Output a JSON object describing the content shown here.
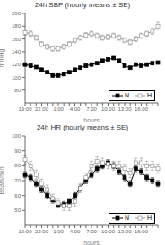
{
  "chart_data": [
    {
      "type": "line",
      "title": "24h SBP (hourly means ± SE)",
      "xlabel": "hours",
      "ylabel": "mmHg",
      "categories": [
        "19:00",
        null,
        null,
        "22:00",
        null,
        null,
        "1:00",
        null,
        null,
        "4:00",
        null,
        null,
        "7:00",
        null,
        null,
        "10:00",
        null,
        null,
        "13:00",
        null,
        null,
        "16:00",
        null,
        null,
        null
      ],
      "series": [
        {
          "name": "N",
          "color": "#000000",
          "marker": "square",
          "values": [
            120,
            118,
            116,
            112,
            108,
            103,
            103,
            105,
            108,
            112,
            115,
            118,
            120,
            122,
            126,
            128,
            130,
            126,
            118,
            115,
            120,
            118,
            120,
            122,
            123
          ],
          "error": [
            2,
            2,
            2,
            2,
            2,
            2,
            2,
            2,
            2,
            2,
            2,
            2,
            2,
            2,
            2,
            2,
            2,
            2,
            2,
            2,
            2,
            2,
            2,
            2,
            2
          ]
        },
        {
          "name": "H",
          "color": "#999999",
          "marker": "open_square",
          "values": [
            170,
            168,
            162,
            152,
            148,
            145,
            145,
            148,
            152,
            158,
            162,
            166,
            168,
            165,
            162,
            163,
            165,
            162,
            158,
            155,
            160,
            165,
            168,
            172,
            180
          ],
          "error": [
            4,
            4,
            4,
            4,
            4,
            4,
            4,
            4,
            4,
            4,
            4,
            4,
            4,
            4,
            4,
            4,
            4,
            4,
            4,
            4,
            4,
            4,
            4,
            5,
            6
          ]
        }
      ],
      "ylim": [
        60,
        200
      ],
      "yticks": [
        80,
        100,
        120,
        140,
        160,
        180,
        200
      ],
      "legend": "lower right",
      "grid": false
    },
    {
      "type": "line",
      "title": "24h HR (hourly means ± SE)",
      "xlabel": "hours",
      "ylabel": "Beats/min",
      "categories": [
        "19:00",
        null,
        null,
        "22:00",
        null,
        null,
        "1:00",
        null,
        null,
        "4:00",
        null,
        null,
        "7:00",
        null,
        null,
        "10:00",
        null,
        null,
        "13:00",
        null,
        null,
        "16:00",
        null,
        null,
        null
      ],
      "series": [
        {
          "name": "N",
          "color": "#000000",
          "marker": "square",
          "values": [
            74,
            72,
            68,
            64,
            60,
            57,
            54,
            54,
            56,
            60,
            65,
            70,
            74,
            78,
            80,
            82,
            80,
            76,
            72,
            68,
            78,
            76,
            72,
            70,
            68
          ],
          "error": [
            2,
            2,
            2,
            2,
            2,
            2,
            2,
            2,
            2,
            2,
            2,
            2,
            2,
            2,
            2,
            2,
            2,
            2,
            2,
            2,
            2,
            2,
            2,
            2,
            2
          ]
        },
        {
          "name": "H",
          "color": "#999999",
          "marker": "open_square",
          "values": [
            84,
            80,
            74,
            68,
            64,
            58,
            55,
            53,
            53,
            56,
            65,
            72,
            80,
            83,
            82,
            81,
            80,
            80,
            78,
            75,
            82,
            82,
            80,
            80,
            78
          ],
          "error": [
            3,
            3,
            3,
            3,
            3,
            3,
            3,
            3,
            3,
            3,
            3,
            3,
            3,
            3,
            3,
            3,
            3,
            3,
            3,
            3,
            3,
            3,
            3,
            3,
            3
          ]
        }
      ],
      "ylim": [
        40,
        100
      ],
      "yticks": [
        50,
        60,
        70,
        80,
        90,
        100
      ],
      "legend": "lower right",
      "grid": false
    }
  ]
}
